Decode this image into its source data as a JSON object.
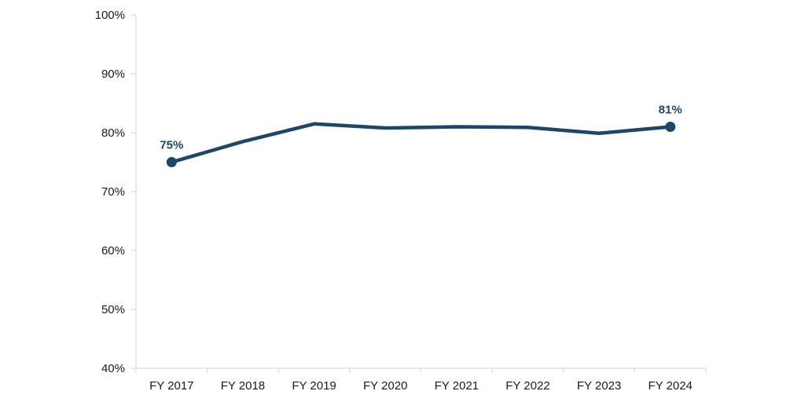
{
  "chart_data": {
    "type": "line",
    "title": "",
    "xlabel": "",
    "ylabel": "",
    "categories": [
      "FY 2017",
      "FY 2018",
      "FY 2019",
      "FY 2020",
      "FY 2021",
      "FY 2022",
      "FY 2023",
      "FY 2024"
    ],
    "series": [
      {
        "values": [
          75,
          78.5,
          81.5,
          80.8,
          81.0,
          80.9,
          79.9,
          81
        ],
        "color": "#1b4769"
      }
    ],
    "ylim": [
      40,
      100
    ],
    "yticks": [
      40,
      50,
      60,
      70,
      80,
      90,
      100
    ],
    "ytick_labels": [
      "40%",
      "50%",
      "60%",
      "70%",
      "80%",
      "90%",
      "100%"
    ],
    "data_labels": [
      {
        "category": "FY 2017",
        "text": "75%"
      },
      {
        "category": "FY 2024",
        "text": "81%"
      }
    ],
    "markers_on": [
      "FY 2017",
      "FY 2024"
    ],
    "grid": false,
    "legend": "none"
  },
  "colors": {
    "axis": "#d9d9d9",
    "text": "#1a1a1a",
    "series": "#1b4769"
  }
}
